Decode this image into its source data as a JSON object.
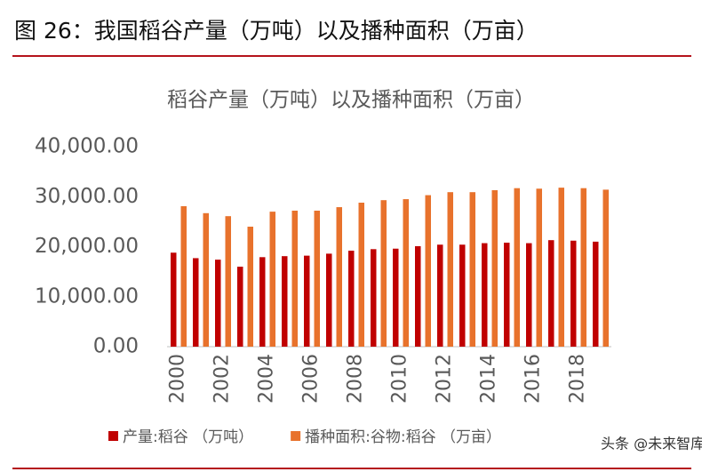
{
  "header": {
    "title": "图 26：我国稻谷产量（万吨）以及播种面积（万亩）"
  },
  "watermark": "头条 @未来智库",
  "chart_data": {
    "type": "bar",
    "title": "稻谷产量（万吨）以及播种面积（万亩）",
    "categories": [
      "2000",
      null,
      "2002",
      null,
      "2004",
      null,
      "2006",
      null,
      "2008",
      null,
      "2010",
      null,
      "2012",
      null,
      "2014",
      null,
      "2016",
      null,
      "2018",
      null
    ],
    "series": [
      {
        "name": "产量:稻谷 （万吨）",
        "color": "#c00000",
        "values": [
          18800,
          17700,
          17400,
          16000,
          17900,
          18100,
          18200,
          18600,
          19200,
          19500,
          19600,
          20100,
          20400,
          20400,
          20700,
          20800,
          20700,
          21300,
          21200,
          21000
        ]
      },
      {
        "name": "播种面积:谷物:稻谷 （万亩）",
        "color": "#e8722c",
        "values": [
          28100,
          26700,
          26100,
          24000,
          27000,
          27200,
          27200,
          27900,
          28800,
          29300,
          29500,
          30300,
          30900,
          30900,
          31300,
          31700,
          31600,
          31800,
          31700,
          31400
        ]
      }
    ],
    "ylim": [
      0,
      40000
    ],
    "yticks": [
      {
        "value": 0,
        "label": "0.00"
      },
      {
        "value": 10000,
        "label": "10,000.00"
      },
      {
        "value": 20000,
        "label": "20,000.00"
      },
      {
        "value": 30000,
        "label": "30,000.00"
      },
      {
        "value": 40000,
        "label": "40,000.00"
      }
    ],
    "grid": false
  }
}
